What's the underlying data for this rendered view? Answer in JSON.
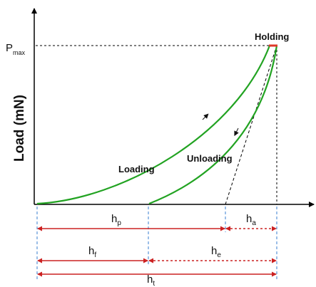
{
  "diagram": {
    "ylabel": "Load (mN)",
    "pmax": {
      "main": "P",
      "sub": "max"
    },
    "curve_labels": {
      "holding": "Holding",
      "loading": "Loading",
      "unloading": "Unloading"
    },
    "depths": {
      "hp": {
        "main": "h",
        "sub": "p"
      },
      "ha": {
        "main": "h",
        "sub": "a"
      },
      "hf": {
        "main": "h",
        "sub": "f"
      },
      "he": {
        "main": "h",
        "sub": "e"
      },
      "ht": {
        "main": "h",
        "sub": "t"
      }
    },
    "colors": {
      "curve": "#22a322",
      "holding": "#e03a2a",
      "dimension": "#cc2222",
      "guide": "#3a7fd0",
      "axis": "#000000"
    }
  }
}
